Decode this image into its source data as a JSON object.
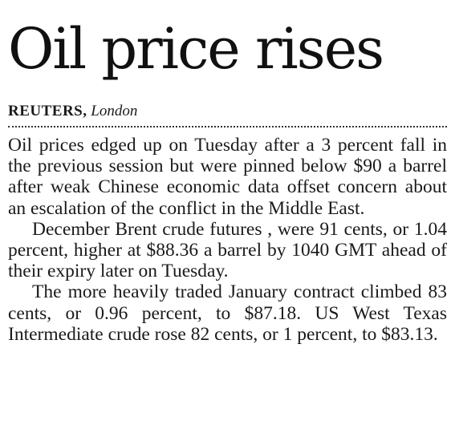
{
  "article": {
    "headline": "Oil price rises",
    "byline": {
      "agency": "REUTERS,",
      "location": "London"
    },
    "paragraphs": [
      "Oil prices edged up on Tuesday after a 3 percent fall in the previous session but were pinned below $90 a barrel after weak Chinese economic data offset concern about an escalation of the conflict in the Middle East.",
      "December Brent crude futures , were 91 cents, or 1.04 percent, higher at $88.36 a barrel by 1040 GMT ahead of their expiry later on Tuesday.",
      "The more heavily traded January contract climbed 83 cents, or 0.96 percent, to $87.18. US West Texas Intermediate crude rose 82 cents, or 1 percent, to $83.13."
    ]
  }
}
